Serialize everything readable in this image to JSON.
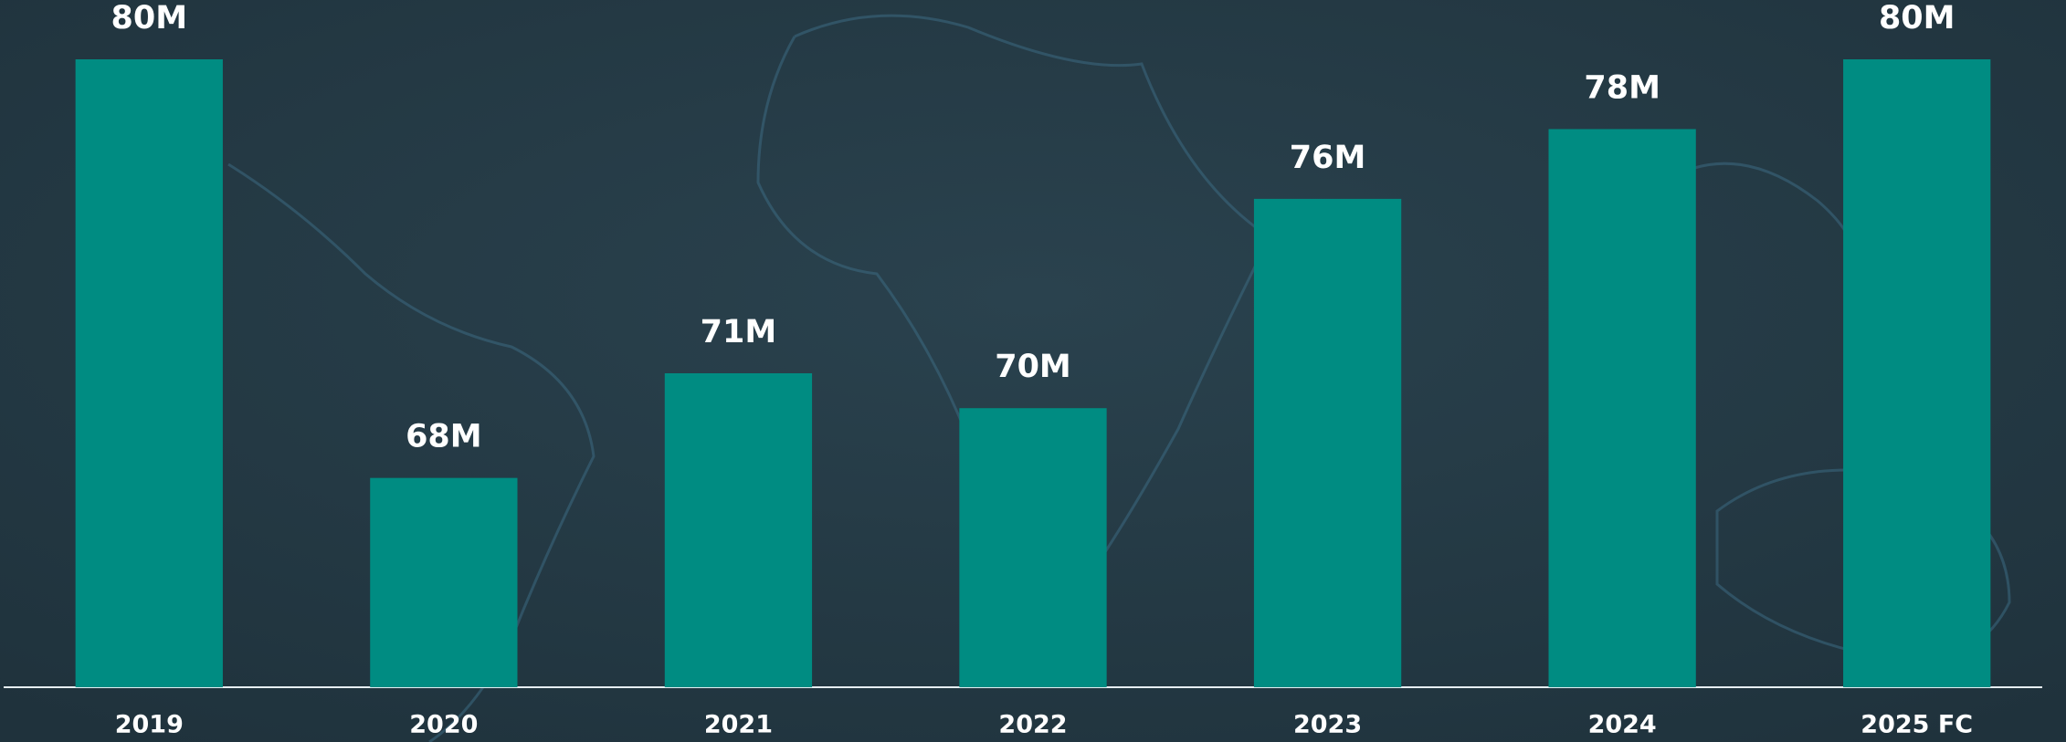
{
  "chart_data": {
    "type": "bar",
    "categories": [
      "2019",
      "2020",
      "2021",
      "2022",
      "2023",
      "2024",
      "2025 FC"
    ],
    "values": [
      80,
      68,
      71,
      70,
      76,
      78,
      80
    ],
    "value_labels": [
      "80M",
      "68M",
      "71M",
      "70M",
      "76M",
      "78M",
      "80M"
    ],
    "color": "#008c82",
    "ylim": [
      62,
      80
    ]
  }
}
